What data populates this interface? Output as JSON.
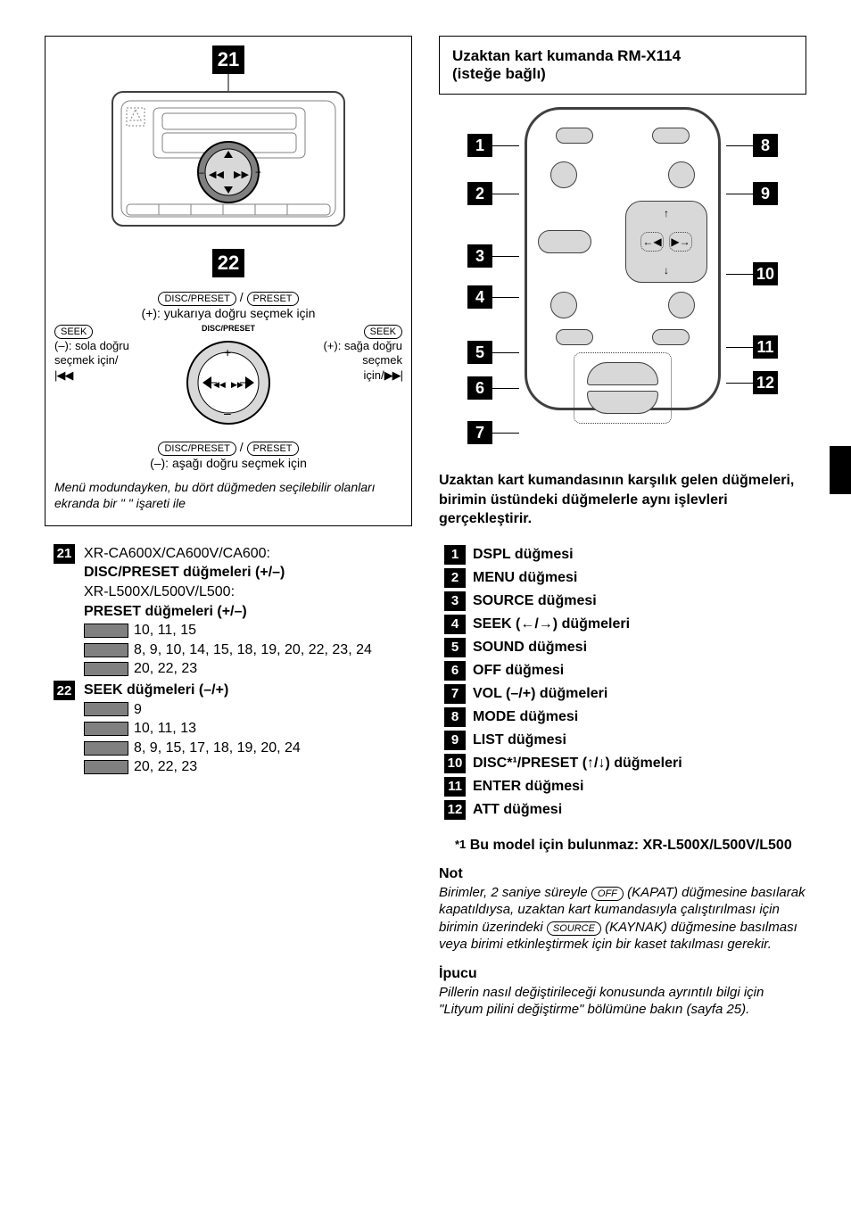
{
  "colors": {
    "black": "#000000",
    "white": "#ffffff",
    "grey_fill": "#d8d8d8",
    "grey_bar": "#808080",
    "rule_grey": "#3f3f3f"
  },
  "left": {
    "fig21": {
      "label": "21"
    },
    "fig22": {
      "label": "22"
    },
    "pills": {
      "disc_preset": "DISC/PRESET",
      "preset": "PRESET",
      "seek": "SEEK"
    },
    "dial_curved_text": "DISC/PRESET",
    "captions": {
      "up": "(+): yukarıya doğru seçmek için",
      "down": "(–): aşağı doğru seçmek için",
      "seek_left_1": "(–): sola doğru",
      "seek_left_2": "seçmek için/",
      "seek_left_icon": "|◀◀",
      "seek_right_1": "(+): sağa doğru",
      "seek_right_2": "seçmek",
      "seek_right_3": "için/",
      "seek_right_icon": "▶▶|"
    },
    "footnote": "Menü modundayken, bu dört düğmeden seçilebilir olanları ekranda bir \"   \" işareti ile",
    "footnote_arrow": "↑",
    "items": [
      {
        "num": "21",
        "lines": [
          "XR-CA600X/CA600V/CA600:",
          "DISC/PRESET düğmeleri (+/–)",
          "XR-L500X/L500V/L500:",
          "PRESET düğmeleri (+/–)"
        ],
        "bar_lines": [
          "10, 11, 15",
          "8, 9, 10, 14, 15, 18, 19, 20, 22, 23, 24",
          "20, 22, 23"
        ]
      },
      {
        "num": "22",
        "lines": [
          "SEEK düğmeleri (–/+)"
        ],
        "bar_lines": [
          "9",
          "10, 11, 13",
          "8, 9, 15, 17, 18, 19, 20, 24",
          "20, 22, 23"
        ]
      }
    ]
  },
  "right": {
    "title_line1": "Uzaktan kart kumanda RM-X114",
    "title_line2": "(isteğe bağlı)",
    "left_nums": [
      "1",
      "2",
      "3",
      "4",
      "5",
      "6",
      "7"
    ],
    "right_nums": [
      "8",
      "9",
      "10",
      "11",
      "12"
    ],
    "arrow_glyphs": {
      "left": "←",
      "right": "→",
      "up": "↑",
      "down": "↓",
      "seek_prev": "◀",
      "seek_next": "▶"
    },
    "para": "Uzaktan kart kumandasının karşılık gelen düğmeleri, birimin üstündeki düğmelerle aynı işlevleri gerçekleştirir.",
    "key_items": [
      {
        "n": "1",
        "t": "DSPL düğmesi"
      },
      {
        "n": "2",
        "t": "MENU düğmesi"
      },
      {
        "n": "3",
        "t": "SOURCE düğmesi"
      },
      {
        "n": "4",
        "t": "SEEK (←/→) düğmeleri"
      },
      {
        "n": "5",
        "t": "SOUND düğmesi"
      },
      {
        "n": "6",
        "t": "OFF düğmesi"
      },
      {
        "n": "7",
        "t": "VOL (–/+) düğmeleri"
      },
      {
        "n": "8",
        "t": "MODE düğmesi"
      },
      {
        "n": "9",
        "t": "LIST düğmesi"
      },
      {
        "n": "10",
        "t": "DISC*¹/PRESET (↑/↓) düğmeleri"
      },
      {
        "n": "11",
        "t": "ENTER düğmesi"
      },
      {
        "n": "12",
        "t": "ATT düğmesi"
      }
    ],
    "ref_mark_label": "*1",
    "ref_line": "Bu model için bulunmaz: XR-L500X/L500V/L500",
    "note_title": "Not",
    "note_body_before_off": "Birimler, 2 saniye süreyle ",
    "pill_off": "OFF",
    "note_body_mid": " (KAPAT) düğmesine basılarak kapatıldıysa, uzaktan kart kumandasıyla çalıştırılması için birimin üzerindeki ",
    "pill_source": "SOURCE",
    "note_body_after": " (KAYNAK) düğmesine basılması veya birimi etkinleştirmek için bir kaset takılması gerekir.",
    "tip_title": "İpucu",
    "tip_body": "Pillerin nasıl değiştirileceği konusunda ayrıntılı bilgi için \"Lityum pilini değiştirme\" bölümüne bakın (sayfa 25)."
  }
}
